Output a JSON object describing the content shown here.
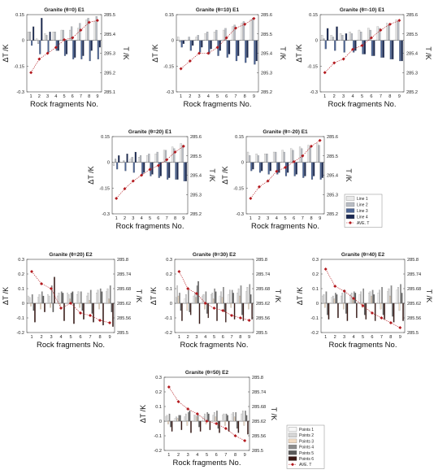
{
  "colors": {
    "line": [
      "#e9e9e9",
      "#b9bdc4",
      "#4d6594",
      "#1b2a53"
    ],
    "point": [
      "#f8f8f8",
      "#d6d6d6",
      "#f2dcc4",
      "#8c8c8c",
      "#5a5a5a",
      "#3a1814"
    ],
    "ave": "#b3191e"
  },
  "legends": [
    {
      "labels": [
        "Line 1",
        "Line 2",
        "Line 3",
        "Line 4",
        "AVE. T"
      ]
    },
    {
      "labels": [
        "Points 1",
        "Points 2",
        "Points 3",
        "Points 4",
        "Points 5",
        "Points 6",
        "AVE. T"
      ]
    }
  ],
  "chart_data": [
    {
      "type": "bar",
      "title": "Granite (θ=0) E1",
      "xlabel": "Rock fragments No.",
      "ylabel": "ΔT /K",
      "y2label": "T /K",
      "categories": [
        "1",
        "2",
        "3",
        "4",
        "5",
        "6",
        "7",
        "8",
        "9"
      ],
      "ylim": [
        -0.3,
        0.15
      ],
      "yticks": [
        "-0.3",
        "-0.15",
        "0",
        "0.15"
      ],
      "y2lim": [
        285.1,
        285.5
      ],
      "y2ticks": [
        "285.1",
        "285.2",
        "285.3",
        "285.4",
        "285.5"
      ],
      "series": [
        {
          "name": "Line 1",
          "values": [
            0.05,
            0.01,
            0.04,
            0.05,
            0.06,
            0.06,
            0.07,
            0.12,
            0.11
          ]
        },
        {
          "name": "Line 2",
          "values": [
            0.05,
            -0.02,
            0.03,
            0.05,
            0.06,
            0.08,
            0.1,
            0.13,
            0.14
          ]
        },
        {
          "name": "Line 3",
          "values": [
            -0.03,
            -0.08,
            -0.07,
            -0.06,
            -0.09,
            -0.11,
            -0.11,
            -0.12,
            -0.11
          ]
        },
        {
          "name": "Line 4",
          "values": [
            0.08,
            0.13,
            0.05,
            -0.06,
            -0.08,
            -0.1,
            -0.09,
            -0.06,
            -0.04
          ]
        }
      ],
      "ave": {
        "name": "AVE. T",
        "values": [
          285.2,
          285.27,
          285.3,
          285.33,
          285.37,
          285.38,
          285.42,
          285.46,
          285.47
        ]
      }
    },
    {
      "type": "bar",
      "title": "Granite (θ=10) E1",
      "xlabel": "Rock fragments No.",
      "ylabel": "ΔT /K",
      "y2label": "T /K",
      "categories": [
        "1",
        "2",
        "3",
        "4",
        "5",
        "6",
        "7",
        "8",
        "9"
      ],
      "ylim": [
        -0.3,
        0.15
      ],
      "yticks": [
        "-0.3",
        "-0.15",
        "0",
        "0.15"
      ],
      "y2lim": [
        285.2,
        285.6
      ],
      "y2ticks": [
        "285.2",
        "285.3",
        "285.4",
        "285.5",
        "285.6"
      ],
      "series": [
        {
          "name": "Line 1",
          "values": [
            0.02,
            0.0,
            0.02,
            0.04,
            0.05,
            0.06,
            0.08,
            0.1,
            0.12
          ]
        },
        {
          "name": "Line 2",
          "values": [
            -0.01,
            0.02,
            0.03,
            0.05,
            0.06,
            0.07,
            0.09,
            0.11,
            0.13
          ]
        },
        {
          "name": "Line 3",
          "values": [
            -0.04,
            -0.06,
            -0.07,
            -0.08,
            -0.09,
            -0.1,
            -0.12,
            -0.13,
            -0.14
          ]
        },
        {
          "name": "Line 4",
          "values": [
            -0.02,
            -0.03,
            -0.04,
            -0.05,
            -0.06,
            -0.08,
            -0.09,
            -0.1,
            -0.12
          ]
        }
      ],
      "ave": {
        "name": "AVE. T",
        "values": [
          285.32,
          285.36,
          285.4,
          285.4,
          285.43,
          285.48,
          285.53,
          285.55,
          285.58
        ]
      }
    },
    {
      "type": "bar",
      "title": "Granite (θ=-10) E1",
      "xlabel": "Rock fragments No.",
      "ylabel": "ΔT /K",
      "y2label": "T /K",
      "categories": [
        "1",
        "2",
        "3",
        "4",
        "5",
        "6",
        "7",
        "8",
        "9"
      ],
      "ylim": [
        -0.3,
        0.15
      ],
      "yticks": [
        "-0.3",
        "-0.15",
        "0",
        "0.15"
      ],
      "y2lim": [
        285.2,
        285.6
      ],
      "y2ticks": [
        "285.2",
        "285.3",
        "285.4",
        "285.5",
        "285.6"
      ],
      "series": [
        {
          "name": "Line 1",
          "values": [
            0.03,
            0.03,
            0.04,
            0.05,
            0.06,
            0.07,
            0.08,
            0.1,
            0.12
          ]
        },
        {
          "name": "Line 2",
          "values": [
            0.01,
            0.02,
            0.03,
            0.04,
            0.05,
            0.06,
            0.07,
            0.09,
            0.11
          ]
        },
        {
          "name": "Line 3",
          "values": [
            -0.05,
            -0.06,
            -0.07,
            -0.07,
            -0.08,
            -0.09,
            -0.1,
            -0.11,
            -0.12
          ]
        },
        {
          "name": "Line 4",
          "values": [
            0.07,
            0.08,
            0.04,
            -0.06,
            -0.08,
            -0.09,
            -0.1,
            -0.11,
            -0.12
          ]
        }
      ],
      "ave": {
        "name": "AVE. T",
        "values": [
          285.3,
          285.35,
          285.37,
          285.42,
          285.44,
          285.48,
          285.52,
          285.55,
          285.57
        ]
      }
    },
    {
      "type": "bar",
      "title": "Granite (θ=20) E1",
      "xlabel": "Rock fragments No.",
      "ylabel": "ΔT /K",
      "y2label": "T /K",
      "categories": [
        "1",
        "2",
        "3",
        "4",
        "5",
        "6",
        "7",
        "8",
        "9"
      ],
      "ylim": [
        -0.3,
        0.15
      ],
      "yticks": [
        "-0.3",
        "-0.15",
        "0",
        "0.15"
      ],
      "y2lim": [
        285.2,
        285.6
      ],
      "y2ticks": [
        "285.2",
        "285.3",
        "285.4",
        "285.5",
        "285.6"
      ],
      "series": [
        {
          "name": "Line 1",
          "values": [
            -0.02,
            0.0,
            0.02,
            0.03,
            0.04,
            0.05,
            0.07,
            0.09,
            0.11
          ]
        },
        {
          "name": "Line 2",
          "values": [
            0.02,
            0.01,
            0.03,
            0.04,
            0.05,
            0.06,
            0.07,
            0.08,
            0.1
          ]
        },
        {
          "name": "Line 3",
          "values": [
            -0.04,
            -0.05,
            -0.06,
            -0.07,
            -0.08,
            -0.09,
            -0.1,
            -0.1,
            -0.11
          ]
        },
        {
          "name": "Line 4",
          "values": [
            0.04,
            0.05,
            0.06,
            -0.06,
            -0.07,
            -0.08,
            -0.09,
            -0.1,
            -0.11
          ]
        }
      ],
      "ave": {
        "name": "AVE. T",
        "values": [
          285.28,
          285.33,
          285.37,
          285.4,
          285.43,
          285.45,
          285.48,
          285.52,
          285.55
        ]
      }
    },
    {
      "type": "bar",
      "title": "Granite (θ=-20) E1",
      "xlabel": "Rock fragments No.",
      "ylabel": "ΔT /K",
      "y2label": "T /K",
      "categories": [
        "1",
        "2",
        "3",
        "4",
        "5",
        "6",
        "7",
        "8",
        "9"
      ],
      "ylim": [
        -0.3,
        0.15
      ],
      "yticks": [
        "-0.3",
        "-0.15",
        "0",
        "0.15"
      ],
      "y2lim": [
        285.2,
        285.6
      ],
      "y2ticks": [
        "285.2",
        "285.3",
        "285.4",
        "285.5",
        "285.6"
      ],
      "series": [
        {
          "name": "Line 1",
          "values": [
            0.06,
            0.05,
            0.05,
            0.06,
            0.07,
            0.08,
            0.09,
            0.1,
            0.11
          ]
        },
        {
          "name": "Line 2",
          "values": [
            0.04,
            0.04,
            0.05,
            0.06,
            0.06,
            0.07,
            0.08,
            0.09,
            0.1
          ]
        },
        {
          "name": "Line 3",
          "values": [
            -0.05,
            -0.06,
            -0.07,
            -0.07,
            -0.08,
            -0.08,
            -0.09,
            -0.1,
            -0.1
          ]
        },
        {
          "name": "Line 4",
          "values": [
            -0.04,
            -0.05,
            -0.05,
            -0.06,
            -0.06,
            -0.07,
            -0.08,
            -0.08,
            -0.09
          ]
        }
      ],
      "ave": {
        "name": "AVE. T",
        "values": [
          285.28,
          285.34,
          285.37,
          285.42,
          285.44,
          285.47,
          285.5,
          285.55,
          285.58
        ]
      }
    },
    {
      "type": "bar",
      "title": "Granite (θ=20) E2",
      "xlabel": "Rock fragments No.",
      "ylabel": "ΔT /K",
      "y2label": "T /K",
      "categories": [
        "1",
        "2",
        "3",
        "4",
        "5",
        "6",
        "7",
        "8",
        "9"
      ],
      "ylim": [
        -0.2,
        0.3
      ],
      "yticks": [
        "-0.2",
        "-0.1",
        "0",
        "0.1",
        "0.2",
        "0.3"
      ],
      "y2lim": [
        285.5,
        285.8
      ],
      "y2ticks": [
        "285.5",
        "285.56",
        "285.62",
        "285.68",
        "285.74",
        "285.8"
      ],
      "series": [
        {
          "name": "Points 1",
          "values": [
            0.05,
            0.04,
            0.06,
            0.05,
            0.07,
            0.06,
            0.05,
            0.07,
            0.08
          ]
        },
        {
          "name": "Points 2",
          "values": [
            0.04,
            0.06,
            0.05,
            0.07,
            0.06,
            0.08,
            0.07,
            0.09,
            0.1
          ]
        },
        {
          "name": "Points 3",
          "values": [
            -0.02,
            -0.04,
            -0.03,
            -0.02,
            0.03,
            -0.03,
            0.02,
            -0.04,
            0.03
          ]
        },
        {
          "name": "Points 4",
          "values": [
            0.06,
            0.08,
            0.12,
            0.08,
            0.07,
            0.08,
            0.09,
            0.1,
            0.12
          ]
        },
        {
          "name": "Points 5",
          "values": [
            -0.05,
            0.05,
            -0.06,
            0.07,
            0.08,
            -0.05,
            -0.07,
            0.08,
            -0.06
          ]
        },
        {
          "name": "Points 6",
          "values": [
            -0.13,
            -0.06,
            0.18,
            -0.12,
            -0.14,
            -0.11,
            -0.13,
            -0.15,
            -0.16
          ]
        }
      ],
      "ave": {
        "name": "AVE. T",
        "values": [
          285.75,
          285.7,
          285.68,
          285.6,
          285.62,
          285.58,
          285.57,
          285.55,
          285.54
        ]
      }
    },
    {
      "type": "bar",
      "title": "Granite (θ=30) E2",
      "xlabel": "Rock fragments No.",
      "ylabel": "ΔT /K",
      "y2label": "T /K",
      "categories": [
        "1",
        "2",
        "3",
        "4",
        "5",
        "6",
        "7",
        "8",
        "9"
      ],
      "ylim": [
        -0.2,
        0.3
      ],
      "yticks": [
        "-0.2",
        "-0.1",
        "0",
        "0.1",
        "0.2",
        "0.3"
      ],
      "y2lim": [
        285.5,
        285.8
      ],
      "y2ticks": [
        "285.5",
        "285.56",
        "285.62",
        "285.68",
        "285.74",
        "285.8"
      ],
      "series": [
        {
          "name": "Points 1",
          "values": [
            0.04,
            0.03,
            0.05,
            0.05,
            0.06,
            0.05,
            0.06,
            0.07,
            0.08
          ]
        },
        {
          "name": "Points 2",
          "values": [
            0.12,
            0.06,
            0.07,
            0.06,
            0.07,
            0.08,
            0.09,
            0.1,
            0.11
          ]
        },
        {
          "name": "Points 3",
          "values": [
            0.05,
            -0.05,
            0.04,
            -0.04,
            0.03,
            0.04,
            -0.03,
            0.05,
            -0.04
          ]
        },
        {
          "name": "Points 4",
          "values": [
            0.07,
            0.09,
            0.12,
            0.08,
            0.1,
            0.11,
            0.09,
            0.12,
            0.13
          ]
        },
        {
          "name": "Points 5",
          "values": [
            -0.05,
            -0.06,
            0.15,
            -0.07,
            0.08,
            -0.06,
            0.07,
            -0.08,
            0.06
          ]
        },
        {
          "name": "Points 6",
          "values": [
            -0.12,
            -0.08,
            -0.14,
            -0.1,
            -0.12,
            -0.13,
            -0.11,
            -0.12,
            -0.11
          ]
        }
      ],
      "ave": {
        "name": "AVE. T",
        "values": [
          285.75,
          285.68,
          285.66,
          285.62,
          285.6,
          285.59,
          285.57,
          285.56,
          285.55
        ]
      }
    },
    {
      "type": "bar",
      "title": "Granite (θ=40) E2",
      "xlabel": "Rock fragments No.",
      "ylabel": "ΔT /K",
      "y2label": "T /K",
      "categories": [
        "1",
        "2",
        "3",
        "4",
        "5",
        "6",
        "7",
        "8",
        "9"
      ],
      "ylim": [
        -0.2,
        0.3
      ],
      "yticks": [
        "-0.2",
        "-0.1",
        "0",
        "0.1",
        "0.2",
        "0.3"
      ],
      "y2lim": [
        285.5,
        285.8
      ],
      "y2ticks": [
        "285.5",
        "285.56",
        "285.62",
        "285.68",
        "285.74",
        "285.8"
      ],
      "series": [
        {
          "name": "Points 1",
          "values": [
            0.05,
            0.04,
            0.05,
            0.06,
            0.06,
            0.07,
            0.07,
            0.08,
            0.09
          ]
        },
        {
          "name": "Points 2",
          "values": [
            0.06,
            0.05,
            0.07,
            0.07,
            0.08,
            0.08,
            0.09,
            0.1,
            0.11
          ]
        },
        {
          "name": "Points 3",
          "values": [
            -0.03,
            0.03,
            -0.04,
            0.04,
            -0.03,
            0.05,
            -0.04,
            0.05,
            -0.05
          ]
        },
        {
          "name": "Points 4",
          "values": [
            0.08,
            0.07,
            0.09,
            0.08,
            0.1,
            0.09,
            0.11,
            0.12,
            0.13
          ]
        },
        {
          "name": "Points 5",
          "values": [
            -0.08,
            0.06,
            -0.07,
            0.07,
            -0.08,
            0.06,
            -0.08,
            -0.09,
            0.07
          ]
        },
        {
          "name": "Points 6",
          "values": [
            -0.11,
            -0.1,
            -0.12,
            -0.1,
            -0.11,
            -0.12,
            -0.11,
            -0.13,
            -0.12
          ]
        }
      ],
      "ave": {
        "name": "AVE. T",
        "values": [
          285.76,
          285.69,
          285.67,
          285.64,
          285.61,
          285.58,
          285.56,
          285.54,
          285.52
        ]
      }
    },
    {
      "type": "bar",
      "title": "Granite (θ=50) E2",
      "xlabel": "Rock fragments No.",
      "ylabel": "ΔT /K",
      "y2label": "T /K",
      "categories": [
        "1",
        "2",
        "3",
        "4",
        "5",
        "6",
        "7",
        "8",
        "9"
      ],
      "ylim": [
        -0.2,
        0.3
      ],
      "yticks": [
        "-0.2",
        "-0.1",
        "0",
        "0.1",
        "0.2",
        "0.3"
      ],
      "y2lim": [
        285.5,
        285.8
      ],
      "y2ticks": [
        "285.5",
        "285.56",
        "285.62",
        "285.68",
        "285.74",
        "285.8"
      ],
      "series": [
        {
          "name": "Points 1",
          "values": [
            0.03,
            0.02,
            0.03,
            0.04,
            0.03,
            0.04,
            0.04,
            0.05,
            0.05
          ]
        },
        {
          "name": "Points 2",
          "values": [
            0.04,
            0.03,
            0.05,
            0.04,
            0.05,
            0.06,
            0.05,
            0.06,
            0.07
          ]
        },
        {
          "name": "Points 3",
          "values": [
            -0.02,
            0.02,
            -0.03,
            0.03,
            -0.02,
            0.03,
            -0.03,
            0.03,
            -0.03
          ]
        },
        {
          "name": "Points 4",
          "values": [
            0.05,
            0.04,
            0.06,
            0.05,
            0.06,
            0.07,
            0.05,
            0.06,
            0.07
          ]
        },
        {
          "name": "Points 5",
          "values": [
            -0.04,
            0.04,
            0.07,
            -0.04,
            0.05,
            -0.05,
            0.04,
            -0.05,
            0.04
          ]
        },
        {
          "name": "Points 6",
          "values": [
            -0.07,
            -0.06,
            -0.08,
            -0.07,
            -0.06,
            -0.08,
            -0.07,
            -0.08,
            -0.09
          ]
        }
      ],
      "ave": {
        "name": "AVE. T",
        "values": [
          285.76,
          285.7,
          285.67,
          285.65,
          285.62,
          285.61,
          285.59,
          285.56,
          285.54
        ]
      }
    }
  ]
}
